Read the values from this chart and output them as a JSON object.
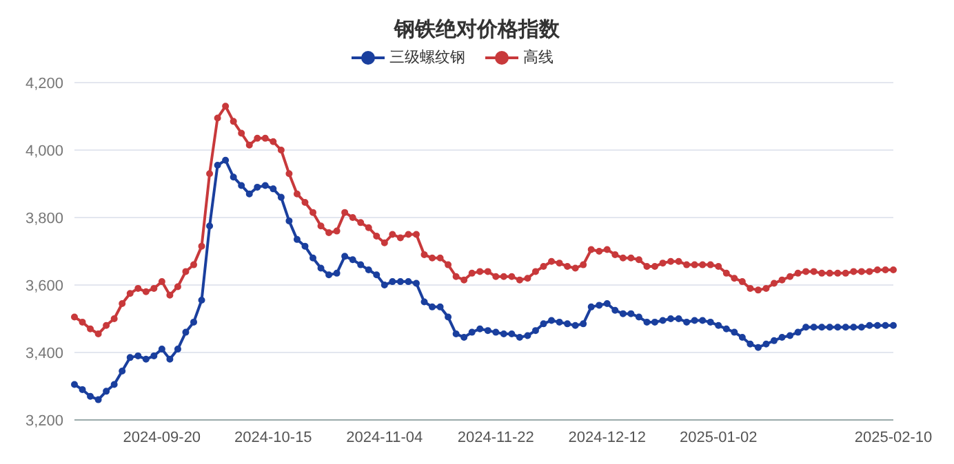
{
  "chart_data": {
    "type": "line",
    "title": "钢铁绝对价格指数",
    "categories": [
      null,
      null,
      null,
      null,
      null,
      null,
      null,
      null,
      null,
      null,
      null,
      "2024-09-20",
      null,
      null,
      null,
      null,
      null,
      null,
      null,
      null,
      null,
      null,
      null,
      null,
      null,
      "2024-10-15",
      null,
      null,
      null,
      null,
      null,
      null,
      null,
      null,
      null,
      null,
      null,
      null,
      null,
      "2024-11-04",
      null,
      null,
      null,
      null,
      null,
      null,
      null,
      null,
      null,
      null,
      null,
      null,
      null,
      "2024-11-22",
      null,
      null,
      null,
      null,
      null,
      null,
      null,
      null,
      null,
      null,
      null,
      null,
      null,
      "2024-12-12",
      null,
      null,
      null,
      null,
      null,
      null,
      null,
      null,
      null,
      null,
      null,
      null,
      null,
      "2025-01-02",
      null,
      null,
      null,
      null,
      null,
      null,
      null,
      null,
      null,
      null,
      null,
      null,
      null,
      null,
      null,
      null,
      null,
      null,
      null,
      null,
      null,
      "2025-02-10"
    ],
    "series": [
      {
        "name": "三级螺纹钢",
        "color": "#1a3f9e",
        "values": [
          3305,
          3290,
          3270,
          3260,
          3285,
          3305,
          3345,
          3385,
          3390,
          3380,
          3390,
          3410,
          3380,
          3410,
          3460,
          3490,
          3555,
          3775,
          3955,
          3970,
          3920,
          3895,
          3870,
          3890,
          3895,
          3885,
          3860,
          3790,
          3735,
          3715,
          3680,
          3650,
          3630,
          3635,
          3685,
          3675,
          3660,
          3645,
          3630,
          3600,
          3610,
          3610,
          3610,
          3605,
          3550,
          3535,
          3535,
          3505,
          3455,
          3445,
          3460,
          3470,
          3465,
          3460,
          3455,
          3455,
          3445,
          3450,
          3465,
          3485,
          3495,
          3490,
          3485,
          3480,
          3485,
          3535,
          3540,
          3545,
          3525,
          3515,
          3515,
          3505,
          3490,
          3490,
          3495,
          3500,
          3500,
          3490,
          3495,
          3495,
          3490,
          3480,
          3470,
          3460,
          3445,
          3425,
          3415,
          3425,
          3435,
          3445,
          3450,
          3460,
          3475,
          3475,
          3475,
          3475,
          3475,
          3475,
          3475,
          3475,
          3480,
          3480,
          3480,
          3480
        ]
      },
      {
        "name": "高线",
        "color": "#c8393b",
        "values": [
          3505,
          3490,
          3470,
          3455,
          3480,
          3500,
          3545,
          3575,
          3590,
          3580,
          3590,
          3610,
          3570,
          3595,
          3640,
          3660,
          3715,
          3930,
          4095,
          4130,
          4085,
          4050,
          4015,
          4035,
          4035,
          4025,
          4000,
          3930,
          3870,
          3845,
          3815,
          3775,
          3755,
          3760,
          3815,
          3800,
          3785,
          3770,
          3745,
          3725,
          3750,
          3740,
          3750,
          3750,
          3690,
          3680,
          3680,
          3660,
          3625,
          3615,
          3635,
          3640,
          3640,
          3625,
          3625,
          3625,
          3615,
          3620,
          3640,
          3655,
          3670,
          3665,
          3655,
          3650,
          3660,
          3705,
          3700,
          3705,
          3690,
          3680,
          3680,
          3675,
          3655,
          3655,
          3665,
          3670,
          3670,
          3660,
          3660,
          3660,
          3660,
          3655,
          3635,
          3620,
          3610,
          3590,
          3585,
          3590,
          3605,
          3615,
          3625,
          3635,
          3640,
          3640,
          3635,
          3635,
          3635,
          3635,
          3640,
          3640,
          3640,
          3645,
          3645,
          3645
        ]
      }
    ],
    "ylim": [
      3200,
      4200
    ],
    "yticks": [
      {
        "value": 3200,
        "label": "3,200"
      },
      {
        "value": 3400,
        "label": "3,400"
      },
      {
        "value": 3600,
        "label": "3,600"
      },
      {
        "value": 3800,
        "label": "3,800"
      },
      {
        "value": 4000,
        "label": "4,000"
      },
      {
        "value": 4200,
        "label": "4,200"
      }
    ],
    "grid": "y",
    "legend": "top",
    "marker": "circle",
    "line_style": "solid"
  }
}
